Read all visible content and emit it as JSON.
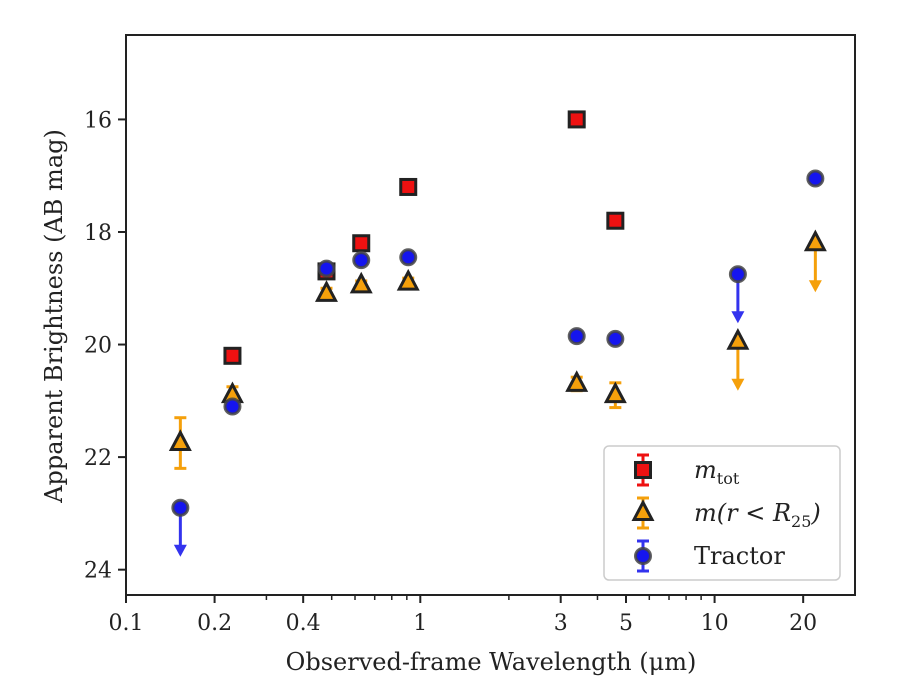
{
  "chart_data": {
    "type": "scatter",
    "xlabel": "Observed-frame Wavelength (μm)",
    "ylabel": "Apparent Brightness (AB mag)",
    "xscale": "log",
    "xlim": [
      0.1,
      30
    ],
    "ylim": [
      24.45,
      14.5
    ],
    "y_inverted": true,
    "x_ticks": [
      0.1,
      0.2,
      0.4,
      1,
      3,
      5,
      10,
      20
    ],
    "x_tick_labels": [
      "0.1",
      "0.2",
      "0.4",
      "1",
      "3",
      "5",
      "10",
      "20"
    ],
    "y_ticks": [
      16,
      18,
      20,
      22,
      24
    ],
    "y_tick_labels": [
      "16",
      "18",
      "20",
      "22",
      "24"
    ],
    "grid": false,
    "legend_position": "lower-right",
    "series": [
      {
        "name": "m_tot",
        "marker": "square",
        "color": "#ee1111",
        "edge_color": "#222222",
        "error_color": "#ee1111",
        "points": [
          {
            "x": 0.23,
            "y": 20.2
          },
          {
            "x": 0.48,
            "y": 18.7
          },
          {
            "x": 0.63,
            "y": 18.2
          },
          {
            "x": 0.91,
            "y": 17.2
          },
          {
            "x": 3.4,
            "y": 16.0
          },
          {
            "x": 4.6,
            "y": 17.8
          }
        ]
      },
      {
        "name": "m(r < R25)",
        "marker": "triangle",
        "color": "#f5a00b",
        "edge_color": "#222222",
        "error_color": "#f5a00b",
        "points": [
          {
            "x": 0.153,
            "y": 21.75,
            "err": 0.45
          },
          {
            "x": 0.23,
            "y": 20.9,
            "err": 0.15
          },
          {
            "x": 0.48,
            "y": 19.1,
            "err": 0.1
          },
          {
            "x": 0.63,
            "y": 18.95,
            "err": 0.08
          },
          {
            "x": 0.91,
            "y": 18.9,
            "err": 0.08
          },
          {
            "x": 3.4,
            "y": 20.7,
            "err": 0.12
          },
          {
            "x": 4.6,
            "y": 20.9,
            "err": 0.22
          },
          {
            "x": 12.0,
            "y": 19.95,
            "upper_limit": true
          },
          {
            "x": 22.0,
            "y": 18.2,
            "upper_limit": true
          }
        ]
      },
      {
        "name": "Tractor",
        "marker": "circle",
        "color": "#1515ee",
        "edge_color": "#444444",
        "error_color": "#3333ee",
        "points": [
          {
            "x": 0.153,
            "y": 22.9,
            "upper_limit": true
          },
          {
            "x": 0.23,
            "y": 21.1,
            "err": 0.06
          },
          {
            "x": 0.48,
            "y": 18.65,
            "err": 0.06
          },
          {
            "x": 0.63,
            "y": 18.5,
            "err": 0.06
          },
          {
            "x": 0.91,
            "y": 18.45,
            "err": 0.06
          },
          {
            "x": 3.4,
            "y": 19.85,
            "err": 0.06
          },
          {
            "x": 4.6,
            "y": 19.9,
            "err": 0.06
          },
          {
            "x": 12.0,
            "y": 18.75,
            "upper_limit": true
          },
          {
            "x": 22.0,
            "y": 17.05,
            "err": 0.06
          }
        ]
      }
    ],
    "legend": {
      "entries": [
        {
          "series": 0,
          "label_main": "m",
          "label_sub": "tot"
        },
        {
          "series": 1,
          "label_main": "m(r < R",
          "label_sub": "25",
          "label_tail": ")"
        },
        {
          "series": 2,
          "label_main": "Tractor"
        }
      ]
    }
  }
}
